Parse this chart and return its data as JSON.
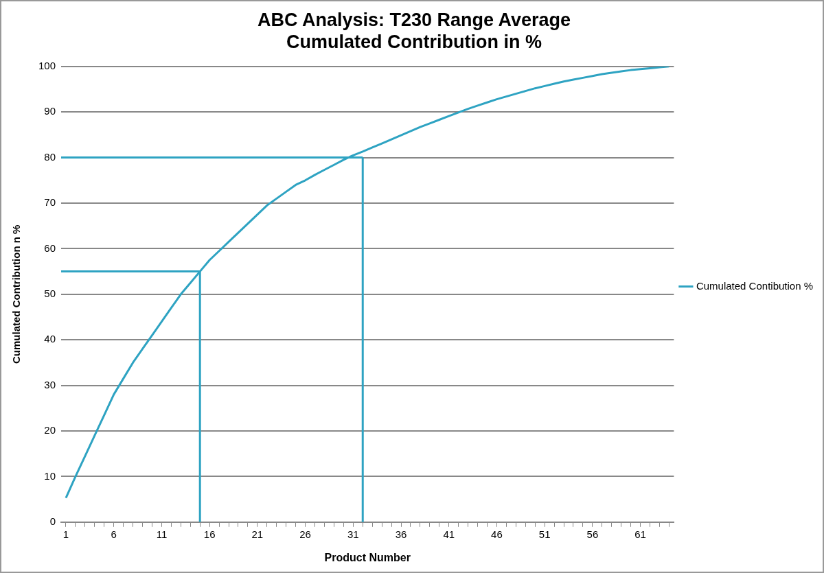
{
  "chart_data": {
    "type": "line",
    "title": "ABC Analysis: T230 Range Average\nCumulated Contribution in %",
    "xlabel": "Product Number",
    "ylabel": "Cumulated Contribution n %",
    "x": [
      1,
      2,
      3,
      4,
      5,
      6,
      7,
      8,
      9,
      10,
      11,
      12,
      13,
      14,
      15,
      16,
      17,
      18,
      19,
      20,
      21,
      22,
      23,
      24,
      25,
      26,
      27,
      28,
      29,
      30,
      31,
      32,
      33,
      34,
      35,
      36,
      37,
      38,
      39,
      40,
      41,
      42,
      43,
      44,
      45,
      46,
      47,
      48,
      49,
      50,
      51,
      52,
      53,
      54,
      55,
      56,
      57,
      58,
      59,
      60,
      61,
      62,
      63,
      64
    ],
    "series": [
      {
        "name": "Cumulated Contibution %",
        "color": "#2ea3c2",
        "values": [
          5.3,
          10,
          14.5,
          19,
          23.5,
          28,
          31.5,
          35,
          38,
          41,
          44,
          47,
          50,
          52.5,
          55,
          57.5,
          59.5,
          61.5,
          63.5,
          65.5,
          67.5,
          69.5,
          71,
          72.5,
          74,
          75,
          76.2,
          77.3,
          78.4,
          79.5,
          80.5,
          81.3,
          82.2,
          83.1,
          84,
          84.9,
          85.8,
          86.7,
          87.5,
          88.3,
          89.1,
          89.9,
          90.7,
          91.4,
          92.1,
          92.8,
          93.4,
          94,
          94.6,
          95.2,
          95.7,
          96.2,
          96.7,
          97.1,
          97.5,
          97.9,
          98.3,
          98.6,
          98.9,
          99.2,
          99.4,
          99.6,
          99.8,
          100
        ]
      }
    ],
    "xlim": [
      0.5,
      64.5
    ],
    "xticks": [
      1,
      {
        "value": 2,
        "label": null
      },
      {
        "value": 3,
        "label": null
      },
      {
        "value": 4,
        "label": null
      },
      {
        "value": 5,
        "label": null
      },
      6,
      {
        "value": 7,
        "label": null
      },
      {
        "value": 8,
        "label": null
      },
      {
        "value": 9,
        "label": null
      },
      {
        "value": 10,
        "label": null
      },
      11,
      {
        "value": 12,
        "label": null
      },
      {
        "value": 13,
        "label": null
      },
      {
        "value": 14,
        "label": null
      },
      {
        "value": 15,
        "label": null
      },
      16,
      {
        "value": 17,
        "label": null
      },
      {
        "value": 18,
        "label": null
      },
      {
        "value": 19,
        "label": null
      },
      {
        "value": 20,
        "label": null
      },
      21,
      {
        "value": 22,
        "label": null
      },
      {
        "value": 23,
        "label": null
      },
      {
        "value": 24,
        "label": null
      },
      {
        "value": 25,
        "label": null
      },
      26,
      {
        "value": 27,
        "label": null
      },
      {
        "value": 28,
        "label": null
      },
      {
        "value": 29,
        "label": null
      },
      {
        "value": 30,
        "label": null
      },
      31,
      {
        "value": 32,
        "label": null
      },
      {
        "value": 33,
        "label": null
      },
      {
        "value": 34,
        "label": null
      },
      {
        "value": 35,
        "label": null
      },
      36,
      {
        "value": 37,
        "label": null
      },
      {
        "value": 38,
        "label": null
      },
      {
        "value": 39,
        "label": null
      },
      {
        "value": 40,
        "label": null
      },
      41,
      {
        "value": 42,
        "label": null
      },
      {
        "value": 43,
        "label": null
      },
      {
        "value": 44,
        "label": null
      },
      {
        "value": 45,
        "label": null
      },
      46,
      {
        "value": 47,
        "label": null
      },
      {
        "value": 48,
        "label": null
      },
      {
        "value": 49,
        "label": null
      },
      {
        "value": 50,
        "label": null
      },
      51,
      {
        "value": 52,
        "label": null
      },
      {
        "value": 53,
        "label": null
      },
      {
        "value": 54,
        "label": null
      },
      {
        "value": 55,
        "label": null
      },
      56,
      {
        "value": 57,
        "label": null
      },
      {
        "value": 58,
        "label": null
      },
      {
        "value": 59,
        "label": null
      },
      {
        "value": 60,
        "label": null
      },
      61,
      {
        "value": 62,
        "label": null
      },
      {
        "value": 63,
        "label": null
      },
      {
        "value": 64,
        "label": null
      }
    ],
    "ylim": [
      0,
      100
    ],
    "yticks": [
      0,
      10,
      20,
      30,
      40,
      50,
      60,
      70,
      80,
      90,
      100
    ],
    "grid": "y",
    "legend": "right",
    "marker": "none",
    "line_style": "solid",
    "ref_lines": [
      {
        "axis": "y",
        "value": 80,
        "color": "#2ea3c2"
      },
      {
        "axis": "y",
        "value": 55,
        "color": "#2ea3c2"
      },
      {
        "axis": "x",
        "value": 15,
        "color": "#2ea3c2"
      },
      {
        "axis": "x",
        "value": 32,
        "color": "#2ea3c2"
      }
    ]
  }
}
